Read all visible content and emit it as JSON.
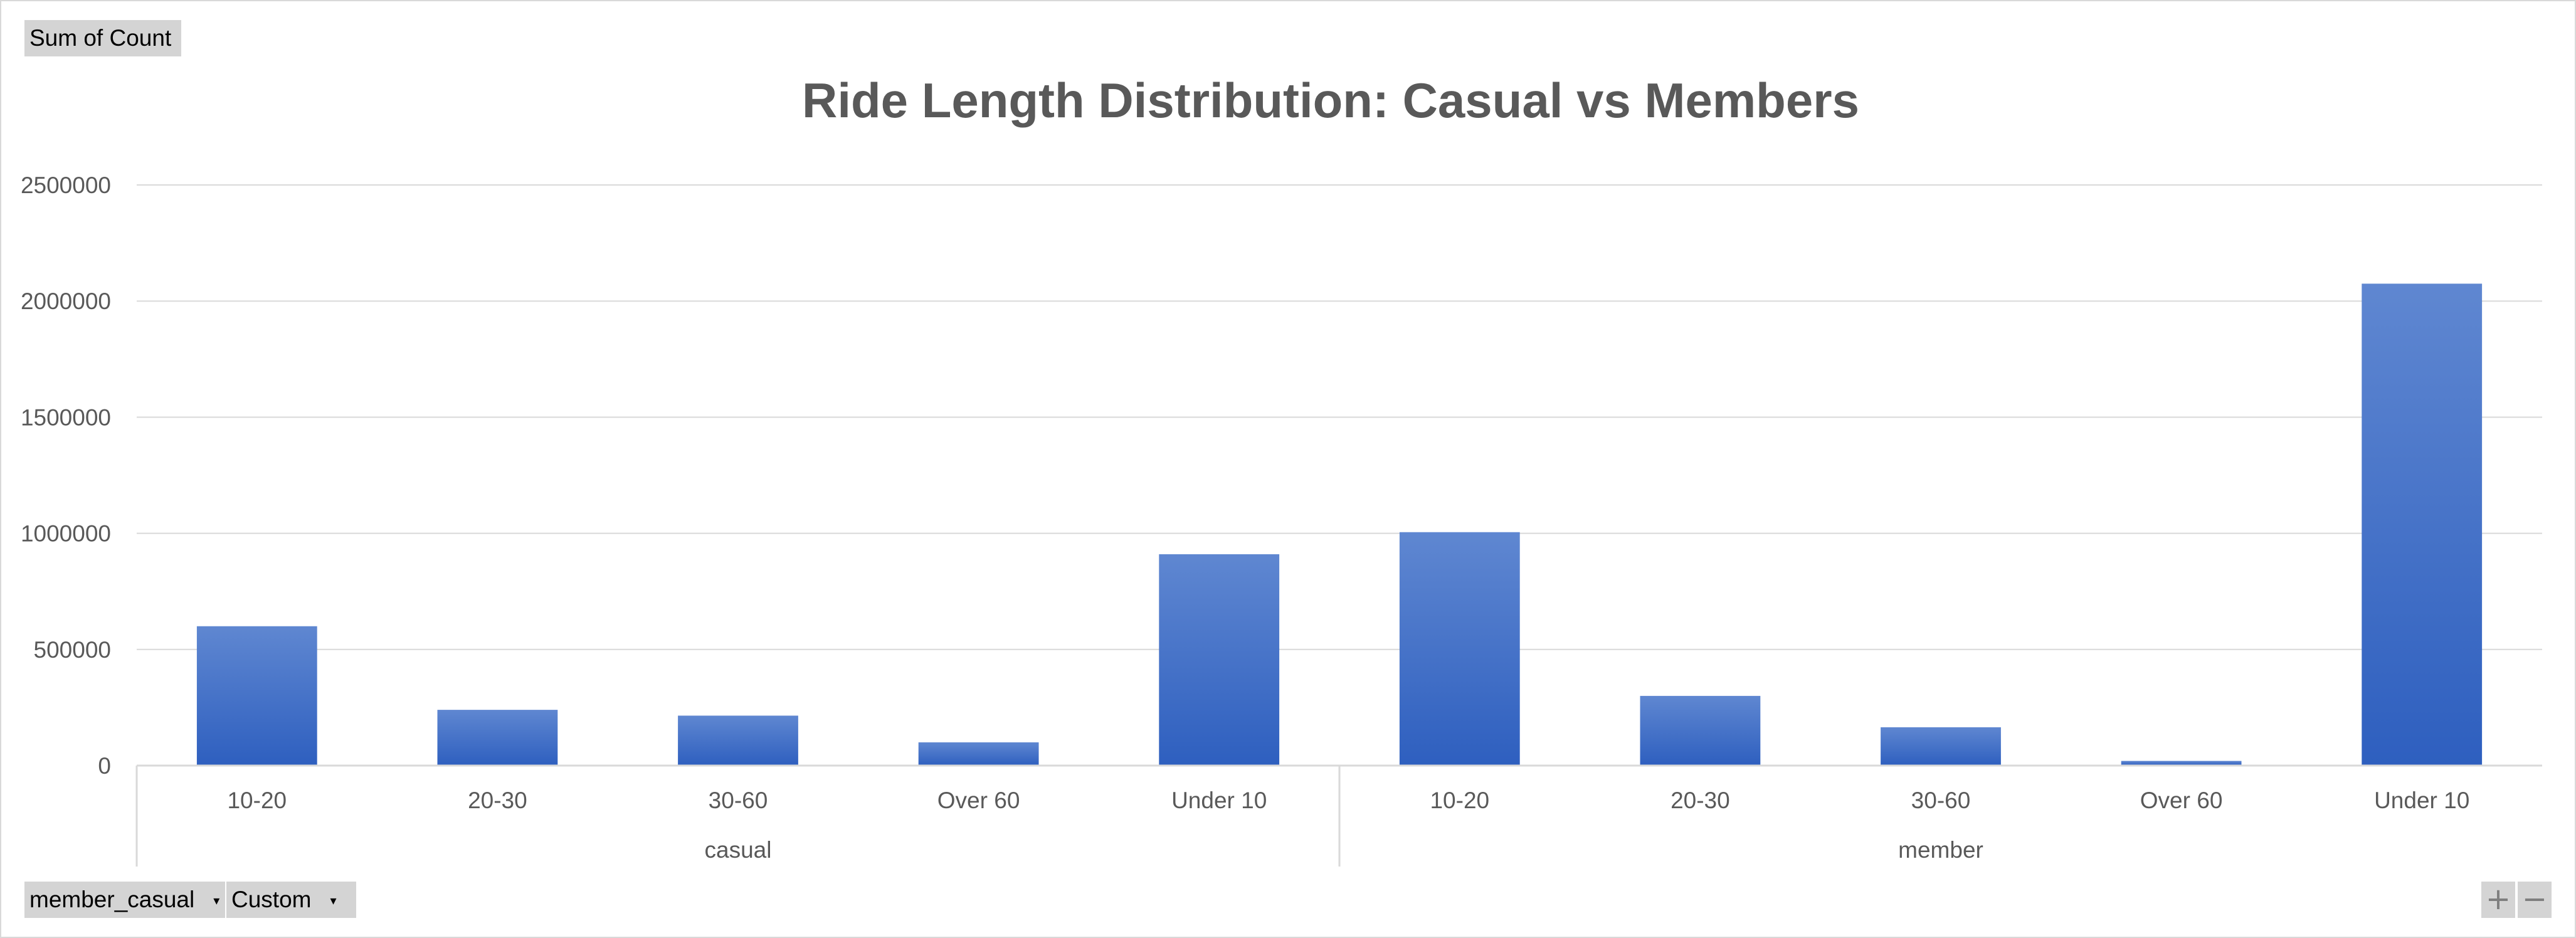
{
  "pivot": {
    "value_field": "Sum of Count",
    "axis_fields": [
      {
        "label": "member_casual",
        "dropdown_icon": "dropdown-arrow-icon"
      },
      {
        "label": "Custom",
        "dropdown_icon": "dropdown-arrow-icon"
      }
    ],
    "zoom_in": "+",
    "zoom_out": "−"
  },
  "colors": {
    "bar_top": "#5f87d1",
    "bar_bottom": "#2e5fbf",
    "grid": "#d9d9d9",
    "text": "#595959"
  },
  "chart_data": {
    "type": "bar",
    "title": "Ride Length Distribution: Casual vs Members",
    "ylim": [
      0,
      2500000
    ],
    "yticks": [
      0,
      500000,
      1000000,
      1500000,
      2000000,
      2500000
    ],
    "ytick_labels": [
      "0",
      "500000",
      "1000000",
      "1500000",
      "2000000",
      "2500000"
    ],
    "grid": true,
    "legend": "none",
    "groups": [
      {
        "name": "casual",
        "categories": [
          "10-20",
          "20-30",
          "30-60",
          "Over 60",
          "Under 10"
        ],
        "values": [
          600000,
          240000,
          215000,
          100000,
          910000
        ]
      },
      {
        "name": "member",
        "categories": [
          "10-20",
          "20-30",
          "30-60",
          "Over 60",
          "Under 10"
        ],
        "values": [
          1005000,
          300000,
          165000,
          20000,
          2075000
        ]
      }
    ]
  }
}
